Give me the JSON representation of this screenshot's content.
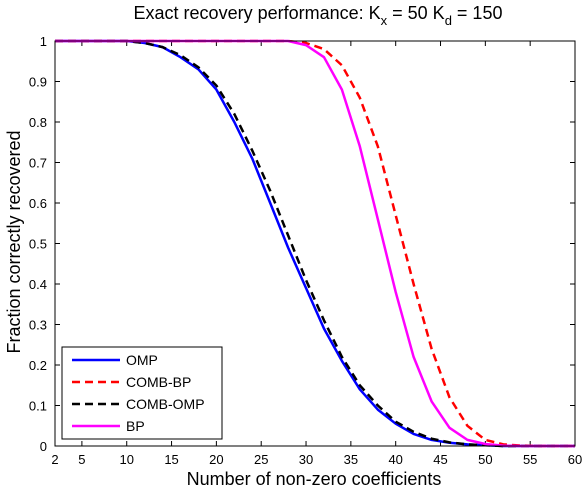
{
  "chart_data": {
    "type": "line",
    "title_parts": {
      "a": "Exact recovery performance: K",
      "sub1": "x",
      "b": " = 50 K",
      "sub2": "d",
      "c": " = 150"
    },
    "xlabel": "Number of non-zero coefficients",
    "ylabel": "Fraction correctly recovered",
    "xlim": [
      2,
      60
    ],
    "ylim": [
      0,
      1
    ],
    "xticks": [
      2,
      5,
      10,
      15,
      20,
      25,
      30,
      35,
      40,
      45,
      50,
      55,
      60
    ],
    "yticks": [
      0,
      0.1,
      0.2,
      0.3,
      0.4,
      0.5,
      0.6,
      0.7,
      0.8,
      0.9,
      1
    ],
    "x": [
      2,
      5,
      10,
      12,
      14,
      16,
      18,
      20,
      22,
      24,
      26,
      28,
      30,
      32,
      34,
      36,
      38,
      40,
      42,
      44,
      46,
      48,
      50,
      52,
      54,
      56,
      58,
      60
    ],
    "legend_position": "bottom-left",
    "series": [
      {
        "name": "OMP",
        "color": "#0000ff",
        "dash": "solid",
        "values": [
          1,
          1,
          1,
          0.995,
          0.985,
          0.96,
          0.93,
          0.88,
          0.8,
          0.71,
          0.6,
          0.49,
          0.39,
          0.29,
          0.21,
          0.14,
          0.09,
          0.055,
          0.03,
          0.015,
          0.008,
          0.004,
          0.002,
          0,
          0,
          0,
          0,
          0
        ]
      },
      {
        "name": "COMB-BP",
        "color": "#ff0000",
        "dash": "dashed",
        "values": [
          1,
          1,
          1,
          1,
          1,
          1,
          1,
          1,
          1,
          1,
          1,
          1,
          0.995,
          0.98,
          0.94,
          0.86,
          0.74,
          0.57,
          0.4,
          0.24,
          0.12,
          0.05,
          0.015,
          0.004,
          0.001,
          0,
          0,
          0
        ]
      },
      {
        "name": "COMB-OMP",
        "color": "#000000",
        "dash": "dashed",
        "values": [
          1,
          1,
          1,
          0.995,
          0.985,
          0.965,
          0.935,
          0.89,
          0.82,
          0.73,
          0.63,
          0.52,
          0.41,
          0.31,
          0.22,
          0.15,
          0.1,
          0.06,
          0.035,
          0.018,
          0.009,
          0.004,
          0.002,
          0,
          0,
          0,
          0,
          0
        ]
      },
      {
        "name": "BP",
        "color": "#ff00ff",
        "dash": "solid",
        "values": [
          1,
          1,
          1,
          1,
          1,
          1,
          1,
          1,
          1,
          1,
          1,
          1,
          0.99,
          0.96,
          0.88,
          0.74,
          0.56,
          0.38,
          0.22,
          0.11,
          0.045,
          0.015,
          0.005,
          0.001,
          0,
          0,
          0,
          0
        ]
      }
    ]
  }
}
